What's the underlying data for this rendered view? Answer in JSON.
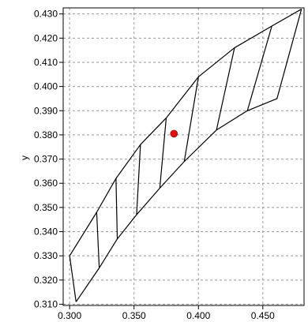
{
  "chart_data": {
    "type": "scatter",
    "title": "",
    "xlabel": "",
    "ylabel": "y",
    "xlim": [
      0.295,
      0.482
    ],
    "ylim": [
      0.3095,
      0.4325
    ],
    "grid": true,
    "x_ticks": [
      "0.300",
      "0.350",
      "0.400",
      "0.450"
    ],
    "y_ticks": [
      "0.310",
      "0.320",
      "0.330",
      "0.340",
      "0.350",
      "0.360",
      "0.370",
      "0.380",
      "0.390",
      "0.400",
      "0.410",
      "0.420",
      "0.430"
    ],
    "colors": {
      "outline": "#000000",
      "point": "#e01010",
      "grid": "#999999",
      "background": "#ffffff"
    },
    "upper_boundary": [
      [
        0.3,
        0.33
      ],
      [
        0.321,
        0.348
      ],
      [
        0.336,
        0.362
      ],
      [
        0.355,
        0.376
      ],
      [
        0.375,
        0.387
      ],
      [
        0.4,
        0.404
      ],
      [
        0.428,
        0.416
      ],
      [
        0.457,
        0.425
      ],
      [
        0.48,
        0.432
      ]
    ],
    "lower_boundary": [
      [
        0.305,
        0.311
      ],
      [
        0.323,
        0.325
      ],
      [
        0.337,
        0.337
      ],
      [
        0.352,
        0.347
      ],
      [
        0.37,
        0.358
      ],
      [
        0.389,
        0.369
      ],
      [
        0.414,
        0.382
      ],
      [
        0.438,
        0.39
      ],
      [
        0.461,
        0.395
      ],
      [
        0.48,
        0.432
      ]
    ],
    "left_edge": [
      [
        0.3,
        0.33
      ],
      [
        0.305,
        0.311
      ]
    ],
    "zone_dividers": [
      [
        [
          0.321,
          0.348
        ],
        [
          0.323,
          0.325
        ]
      ],
      [
        [
          0.336,
          0.362
        ],
        [
          0.337,
          0.337
        ]
      ],
      [
        [
          0.355,
          0.376
        ],
        [
          0.352,
          0.347
        ]
      ],
      [
        [
          0.375,
          0.387
        ],
        [
          0.37,
          0.358
        ]
      ],
      [
        [
          0.4,
          0.404
        ],
        [
          0.389,
          0.369
        ]
      ],
      [
        [
          0.428,
          0.416
        ],
        [
          0.414,
          0.382
        ]
      ],
      [
        [
          0.457,
          0.425
        ],
        [
          0.438,
          0.39
        ]
      ]
    ],
    "point": {
      "x": 0.381,
      "y": 0.3805
    }
  }
}
